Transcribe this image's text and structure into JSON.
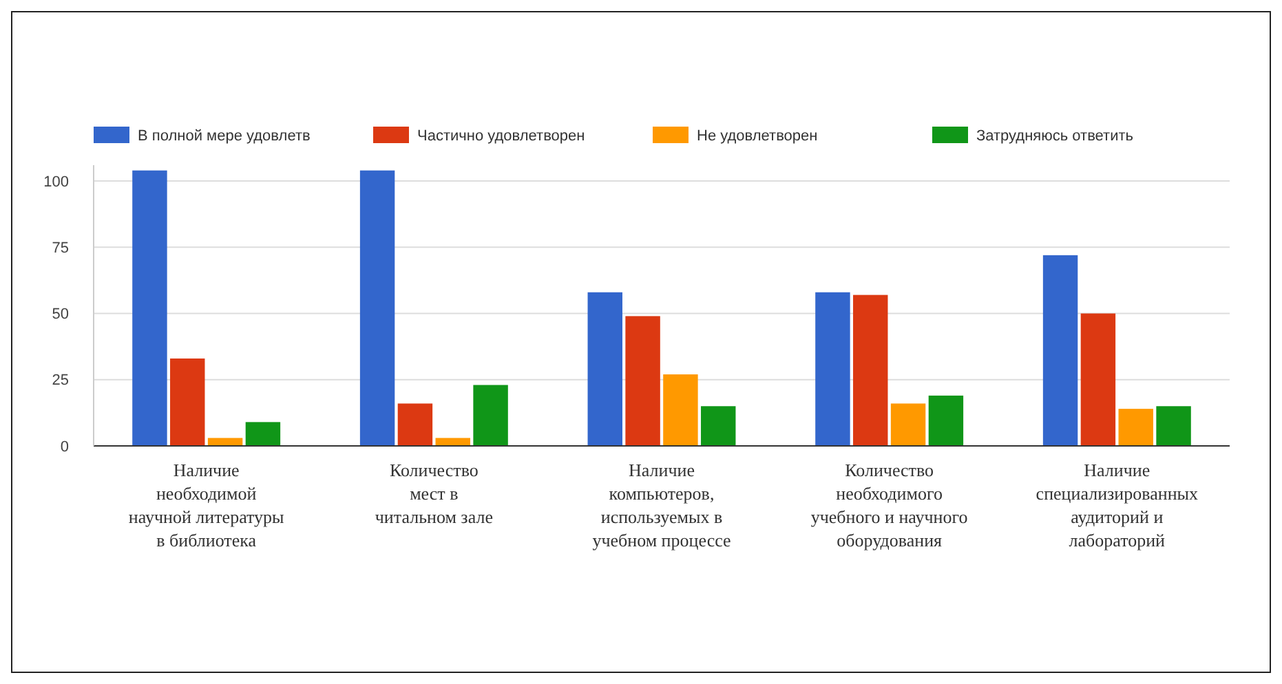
{
  "chart_data": {
    "type": "bar",
    "categories": [
      "Наличие\nнеобходимой\nнаучной литературы\nв библиотека",
      "Количество\nмест в\nчитальном зале",
      "Наличие\nкомпьютеров,\nиспользуемых в\nучебном процессе",
      "Количество\nнеобходимого\nучебного и научного\nоборудования",
      "Наличие\nспециализированных\nаудиторий и\nлабораторий"
    ],
    "series": [
      {
        "name": "В полной мере удовлетв",
        "color": "#3366cc",
        "values": [
          104,
          104,
          58,
          58,
          72
        ]
      },
      {
        "name": "Частично удовлетворен",
        "color": "#dc3912",
        "values": [
          33,
          16,
          49,
          57,
          50
        ]
      },
      {
        "name": "Не удовлетворен",
        "color": "#ff9900",
        "values": [
          3,
          3,
          27,
          16,
          14
        ]
      },
      {
        "name": "Затрудняюсь ответить",
        "color": "#109618",
        "values": [
          9,
          23,
          15,
          19,
          15
        ]
      }
    ],
    "ylim": [
      0,
      106
    ],
    "yticks": [
      0,
      25,
      50,
      75,
      100
    ],
    "grid": "y",
    "legend": "top"
  }
}
